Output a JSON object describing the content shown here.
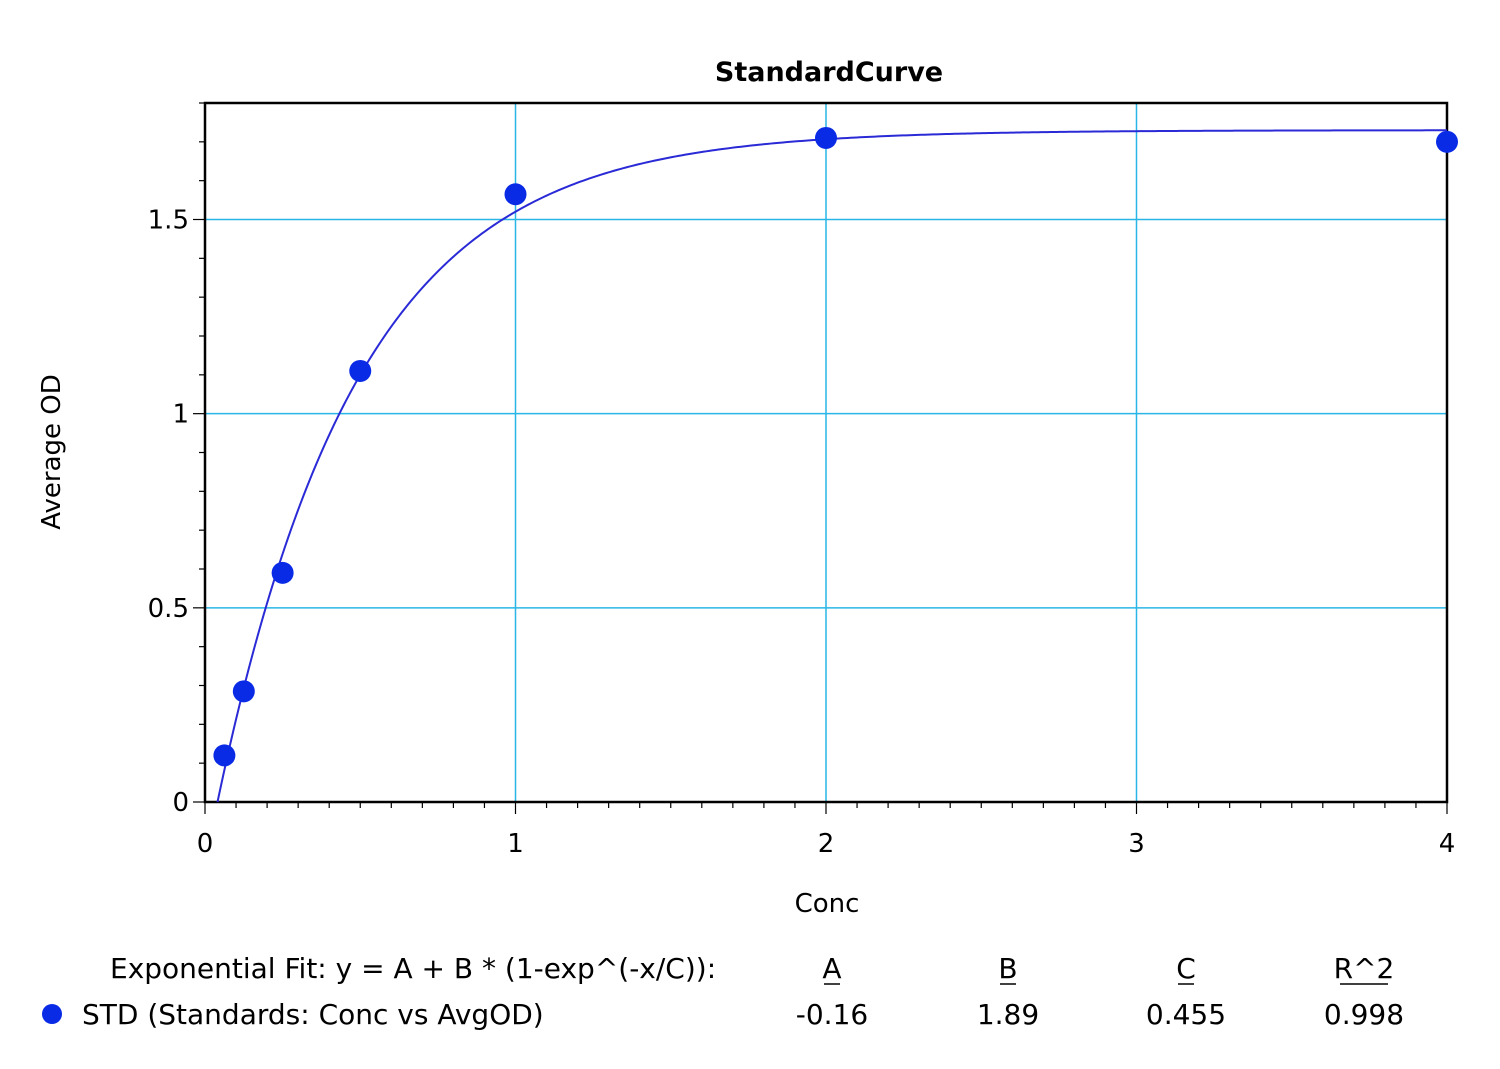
{
  "chart_data": {
    "type": "scatter",
    "title": "StandardCurve",
    "xlabel": "Conc",
    "ylabel": "Average OD",
    "xlim": [
      0,
      4
    ],
    "ylim": [
      0,
      1.8
    ],
    "x_ticks": [
      0,
      1,
      2,
      3,
      4
    ],
    "x_tick_labels": [
      "0",
      "1",
      "2",
      "3",
      "4"
    ],
    "y_ticks": [
      0,
      0.5,
      1,
      1.5
    ],
    "y_tick_labels": [
      "0",
      "0.5",
      "1",
      "1.5"
    ],
    "grid": true,
    "series": [
      {
        "name": "STD (Standards: Conc vs AvgOD)",
        "color": "#0a2be6",
        "points": [
          {
            "x": 0.0625,
            "y": 0.12
          },
          {
            "x": 0.125,
            "y": 0.285
          },
          {
            "x": 0.25,
            "y": 0.59
          },
          {
            "x": 0.5,
            "y": 1.11
          },
          {
            "x": 1,
            "y": 1.565
          },
          {
            "x": 2,
            "y": 1.71
          },
          {
            "x": 4,
            "y": 1.7
          }
        ]
      }
    ],
    "fit": {
      "model": "exponential",
      "equation": "Exponential Fit: y = A + B * (1-exp^(-x/C)):",
      "A": -0.16,
      "B": 1.89,
      "C": 0.455,
      "line_color": "#2a2ad6"
    },
    "legend": {
      "placement": "bottom",
      "headers": [
        "A",
        "B",
        "C",
        "R^2"
      ],
      "row_label": "STD (Standards: Conc vs AvgOD)",
      "values": [
        "-0.16",
        "1.89",
        "0.455",
        "0.998"
      ]
    },
    "colors": {
      "grid": "#29b6e6",
      "point": "#0a2be6",
      "curve": "#2a2ad6",
      "axis": "#000000"
    }
  }
}
